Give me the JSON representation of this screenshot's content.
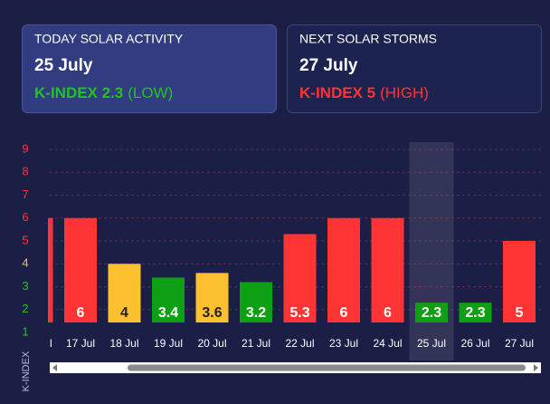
{
  "cards": [
    {
      "heading": "TODAY SOLAR ACTIVITY",
      "date": "25 July",
      "index_label": "K-INDEX 2.3",
      "level": "(LOW)",
      "color": "#22c322"
    },
    {
      "heading": "NEXT SOLAR STORMS",
      "date": "27 July",
      "index_label": "K-INDEX 5",
      "level": "(HIGH)",
      "color": "#ff3434"
    }
  ],
  "chart_data": {
    "type": "bar",
    "y_label": "K-INDEX",
    "categories": [
      "l",
      "17 Jul",
      "18 Jul",
      "19 Jul",
      "20 Jul",
      "21 Jul",
      "22 Jul",
      "23 Jul",
      "24 Jul",
      "25 Jul",
      "26 Jul",
      "27 Jul"
    ],
    "values": [
      6,
      6,
      4,
      3.4,
      3.6,
      3.2,
      5.3,
      6,
      6,
      2.3,
      2.3,
      5
    ],
    "colors": [
      "#ff3434",
      "#ff3434",
      "#fdc02f",
      "#0e9f14",
      "#fdc02f",
      "#0e9f14",
      "#ff3434",
      "#ff3434",
      "#ff3434",
      "#0e9f14",
      "#0e9f14",
      "#ff3434"
    ],
    "ylim": [
      1,
      9
    ],
    "yticks": [
      1,
      2,
      3,
      4,
      5,
      6,
      7,
      8,
      9
    ],
    "ytick_colors": [
      "#22c322",
      "#22c322",
      "#22c322",
      "#fdc02f",
      "#ff3434",
      "#ff3434",
      "#ff3434",
      "#ff3434",
      "#ff3434"
    ],
    "grid": true,
    "highlight": 9
  }
}
